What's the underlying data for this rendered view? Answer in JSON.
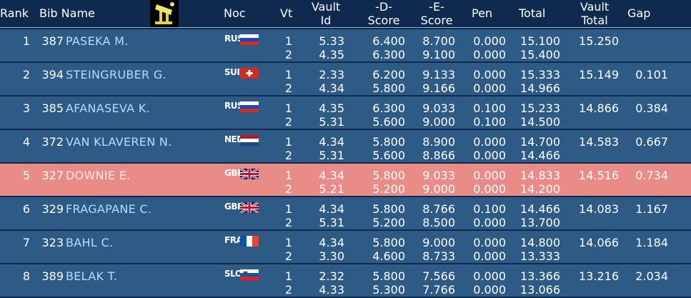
{
  "headers": {
    "rank": "Rank",
    "bib_name": "Bib Name",
    "noc": "Noc",
    "vt": "Vt",
    "vault_id_1": "Vault",
    "vault_id_2": "Id",
    "d_score_1": "-D-",
    "d_score_2": "Score",
    "e_score_1": "-E-",
    "e_score_2": "Score",
    "pen": "Pen",
    "total": "Total",
    "vault_total_1": "Vault",
    "vault_total_2": "Total",
    "gap": "Gap",
    "apparatus_icon": "vault-apparatus-icon"
  },
  "rows": [
    {
      "rank": "1",
      "bib": "387",
      "name": "PASEKA M.",
      "noc": "RUS",
      "flag": "russia",
      "vt1": "1",
      "vt2": "2",
      "id1": "5.33",
      "id2": "4.35",
      "d1": "6.400",
      "d2": "6.300",
      "e1": "8.700",
      "e2": "9.100",
      "p1": "0.000",
      "p2": "0.000",
      "t1": "15.100",
      "t2": "15.400",
      "vault_total": "15.250",
      "gap": ""
    },
    {
      "rank": "2",
      "bib": "394",
      "name": "STEINGRUBER G.",
      "noc": "SUI",
      "flag": "switzerland",
      "vt1": "1",
      "vt2": "2",
      "id1": "2.33",
      "id2": "4.34",
      "d1": "6.200",
      "d2": "5.800",
      "e1": "9.133",
      "e2": "9.166",
      "p1": "0.000",
      "p2": "0.000",
      "t1": "15.333",
      "t2": "14.966",
      "vault_total": "15.149",
      "gap": "0.101"
    },
    {
      "rank": "3",
      "bib": "385",
      "name": "AFANASEVA K.",
      "noc": "RUS",
      "flag": "russia",
      "vt1": "1",
      "vt2": "2",
      "id1": "4.35",
      "id2": "5.31",
      "d1": "6.300",
      "d2": "5.600",
      "e1": "9.033",
      "e2": "9.000",
      "p1": "0.100",
      "p2": "0.100",
      "t1": "15.233",
      "t2": "14.500",
      "vault_total": "14.866",
      "gap": "0.384"
    },
    {
      "rank": "4",
      "bib": "372",
      "name": "VAN KLAVEREN N.",
      "noc": "NED",
      "flag": "netherlands",
      "vt1": "1",
      "vt2": "2",
      "id1": "4.34",
      "id2": "5.31",
      "d1": "5.800",
      "d2": "5.600",
      "e1": "8.900",
      "e2": "8.866",
      "p1": "0.000",
      "p2": "0.000",
      "t1": "14.700",
      "t2": "14.466",
      "vault_total": "14.583",
      "gap": "0.667"
    },
    {
      "rank": "5",
      "bib": "327",
      "name": "DOWNIE E.",
      "noc": "GBR",
      "flag": "uk",
      "highlight": true,
      "vt1": "1",
      "vt2": "2",
      "id1": "4.34",
      "id2": "5.21",
      "d1": "5.800",
      "d2": "5.200",
      "e1": "9.033",
      "e2": "9.000",
      "p1": "0.000",
      "p2": "0.000",
      "t1": "14.833",
      "t2": "14.200",
      "vault_total": "14.516",
      "gap": "0.734"
    },
    {
      "rank": "6",
      "bib": "329",
      "name": "FRAGAPANE C.",
      "noc": "GBR",
      "flag": "uk",
      "vt1": "1",
      "vt2": "2",
      "id1": "4.34",
      "id2": "5.31",
      "d1": "5.800",
      "d2": "5.200",
      "e1": "8.766",
      "e2": "8.500",
      "p1": "0.100",
      "p2": "0.000",
      "t1": "14.466",
      "t2": "13.700",
      "vault_total": "14.083",
      "gap": "1.167"
    },
    {
      "rank": "7",
      "bib": "323",
      "name": "BAHL C.",
      "noc": "FRA",
      "flag": "france",
      "vt1": "1",
      "vt2": "2",
      "id1": "4.34",
      "id2": "3.30",
      "d1": "5.800",
      "d2": "4.600",
      "e1": "9.000",
      "e2": "8.733",
      "p1": "0.000",
      "p2": "0.000",
      "t1": "14.800",
      "t2": "13.333",
      "vault_total": "14.066",
      "gap": "1.184"
    },
    {
      "rank": "8",
      "bib": "389",
      "name": "BELAK T.",
      "noc": "SLO",
      "flag": "slovenia",
      "vt1": "1",
      "vt2": "2",
      "id1": "2.32",
      "id2": "4.33",
      "d1": "5.800",
      "d2": "5.300",
      "e1": "7.566",
      "e2": "7.766",
      "p1": "0.000",
      "p2": "0.000",
      "t1": "13.366",
      "t2": "13.066",
      "vault_total": "13.216",
      "gap": "2.034"
    }
  ],
  "colors": {
    "background": "#0e2a4e",
    "row": "#2e5a86",
    "highlight_row": "#e98b87",
    "name_text": "#b6dcff"
  }
}
